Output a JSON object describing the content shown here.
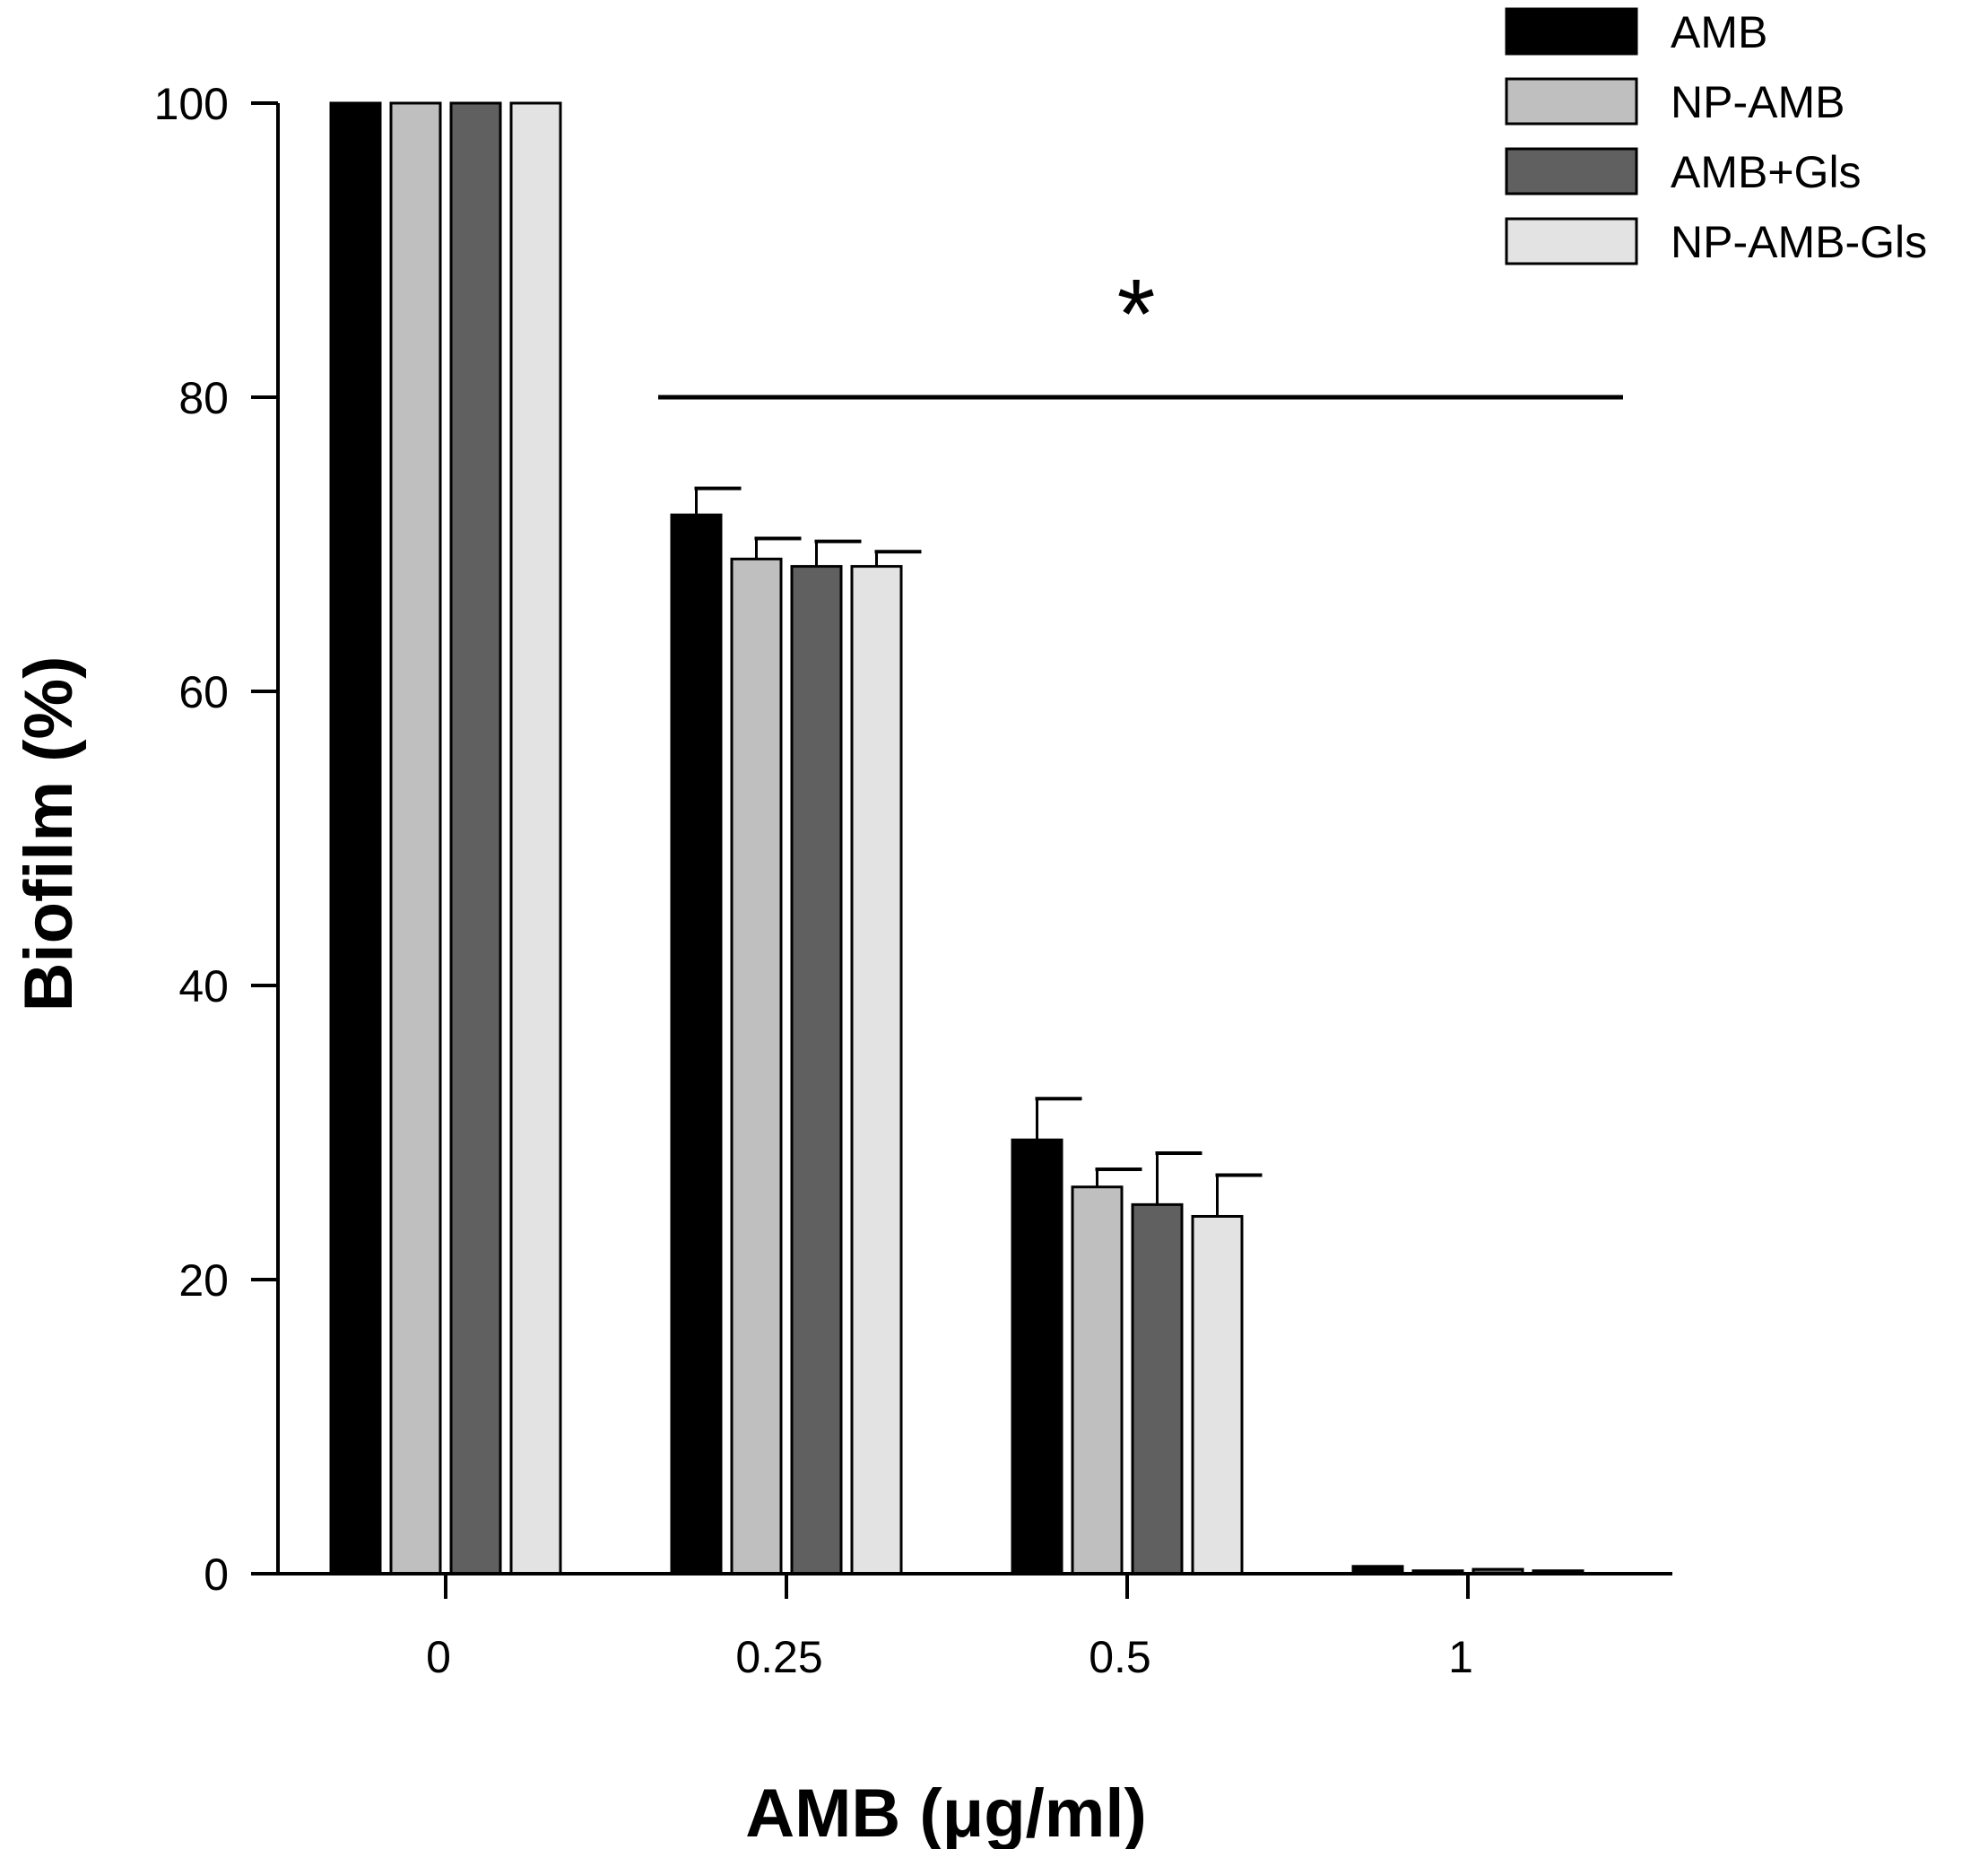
{
  "chart_data": {
    "type": "bar",
    "title": "",
    "xlabel": "AMB  (μg/ml)",
    "ylabel": "Biofilm (%)",
    "ylim": [
      0,
      100
    ],
    "yticks": [
      0,
      20,
      40,
      60,
      80,
      100
    ],
    "categories": [
      "0",
      "0.25",
      "0.5",
      "1"
    ],
    "series": [
      {
        "name": "AMB",
        "color": "#000000",
        "values": [
          100,
          72.0,
          29.5,
          0.5
        ],
        "errors": [
          0,
          1.8,
          2.8,
          0
        ]
      },
      {
        "name": "NP-AMB",
        "color": "#bfbfbf",
        "values": [
          100,
          69.0,
          26.3,
          0.2
        ],
        "errors": [
          0,
          1.4,
          1.2,
          0
        ]
      },
      {
        "name": "AMB+Gls",
        "color": "#606060",
        "values": [
          100,
          68.5,
          25.1,
          0.3
        ],
        "errors": [
          0,
          1.7,
          3.5,
          0
        ]
      },
      {
        "name": "NP-AMB-Gls",
        "color": "#e3e3e3",
        "values": [
          100,
          68.5,
          24.3,
          0.2
        ],
        "errors": [
          0,
          1.0,
          2.8,
          0
        ]
      }
    ],
    "annotation": {
      "text": "*",
      "line_y": 80,
      "from_category": "0.25",
      "to_category": "1"
    },
    "legend": "top-right",
    "grid": false
  }
}
